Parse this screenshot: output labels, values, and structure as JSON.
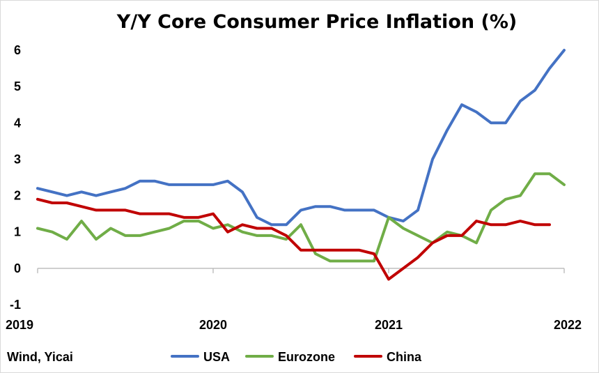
{
  "chart_data": {
    "type": "line",
    "title": "Y/Y Core Consumer Price Inflation (%)",
    "source": "Wind, Yicai",
    "ylim": [
      -1,
      6
    ],
    "yticks": [
      "-1",
      "0",
      "1",
      "2",
      "3",
      "4",
      "5",
      "6"
    ],
    "xlim": [
      2019,
      2022
    ],
    "xticks": [
      "2019",
      "2020",
      "2021",
      "2022"
    ],
    "grid": false,
    "legend_position": "bottom",
    "colors": {
      "USA": "#4472C4",
      "Eurozone": "#70AD47",
      "China": "#C00000"
    },
    "series": [
      {
        "name": "USA",
        "color": "#4472C4",
        "values": [
          2.2,
          2.1,
          2.0,
          2.1,
          2.0,
          2.1,
          2.2,
          2.4,
          2.4,
          2.3,
          2.3,
          2.3,
          2.3,
          2.4,
          2.1,
          1.4,
          1.2,
          1.2,
          1.6,
          1.7,
          1.7,
          1.6,
          1.6,
          1.6,
          1.4,
          1.3,
          1.6,
          3.0,
          3.8,
          4.5,
          4.3,
          4.0,
          4.0,
          4.6,
          4.9,
          5.5,
          6.0
        ]
      },
      {
        "name": "Eurozone",
        "color": "#70AD47",
        "values": [
          1.1,
          1.0,
          0.8,
          1.3,
          0.8,
          1.1,
          0.9,
          0.9,
          1.0,
          1.1,
          1.3,
          1.3,
          1.1,
          1.2,
          1.0,
          0.9,
          0.9,
          0.8,
          1.2,
          0.4,
          0.2,
          0.2,
          0.2,
          0.2,
          1.4,
          1.1,
          0.9,
          0.7,
          1.0,
          0.9,
          0.7,
          1.6,
          1.9,
          2.0,
          2.6,
          2.6,
          2.3
        ]
      },
      {
        "name": "China",
        "color": "#C00000",
        "values": [
          1.9,
          1.8,
          1.8,
          1.7,
          1.6,
          1.6,
          1.6,
          1.5,
          1.5,
          1.5,
          1.4,
          1.4,
          1.5,
          1.0,
          1.2,
          1.1,
          1.1,
          0.9,
          0.5,
          0.5,
          0.5,
          0.5,
          0.5,
          0.4,
          -0.3,
          0.0,
          0.3,
          0.7,
          0.9,
          0.9,
          1.3,
          1.2,
          1.2,
          1.3,
          1.2,
          1.2,
          null
        ]
      }
    ]
  }
}
